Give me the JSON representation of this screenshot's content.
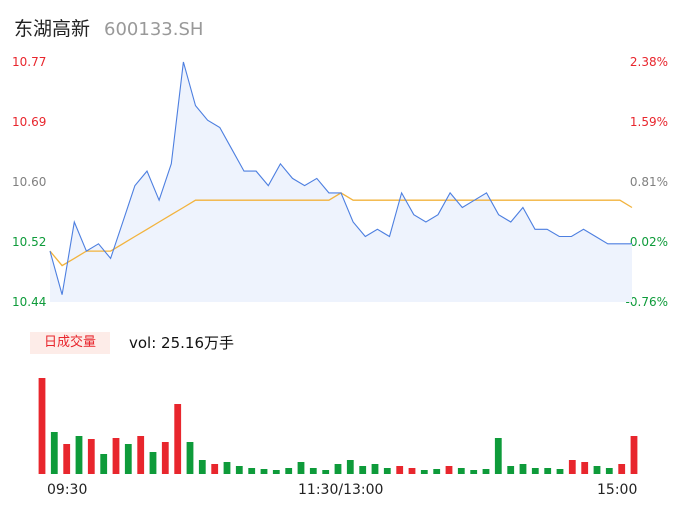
{
  "header": {
    "name": "东湖高新",
    "code": "600133.SH"
  },
  "price_axis": {
    "left_ticks": [
      "10.77",
      "10.69",
      "10.60",
      "10.52",
      "10.44"
    ],
    "right_ticks": [
      "2.38%",
      "1.59%",
      "0.81%",
      "0.02%",
      "-0.76%"
    ]
  },
  "volume_panel": {
    "tab_label": "日成交量",
    "readout": "vol: 25.16万手"
  },
  "time_axis": {
    "ticks": [
      "09:30",
      "11:30/13:00",
      "15:00"
    ]
  },
  "colors": {
    "price_line": "#4d7fe0",
    "avg_line": "#f2b33d",
    "up": "#e8262d",
    "down": "#0e9b3a",
    "fill": "#eef3fd"
  },
  "chart_data": [
    {
      "type": "line",
      "title": "",
      "ylim": [
        10.44,
        10.77
      ],
      "xlabel": "",
      "ylabel": "",
      "x": [
        "09:30",
        "09:35",
        "09:40",
        "09:45",
        "09:50",
        "09:55",
        "10:00",
        "10:05",
        "10:10",
        "10:15",
        "10:20",
        "10:25",
        "10:30",
        "10:35",
        "10:40",
        "10:45",
        "10:50",
        "10:55",
        "11:00",
        "11:05",
        "11:10",
        "11:15",
        "11:20",
        "11:25",
        "11:30",
        "13:05",
        "13:10",
        "13:15",
        "13:20",
        "13:25",
        "13:30",
        "13:35",
        "13:40",
        "13:45",
        "13:50",
        "13:55",
        "14:00",
        "14:05",
        "14:10",
        "14:15",
        "14:20",
        "14:25",
        "14:30",
        "14:35",
        "14:40",
        "14:45",
        "14:50",
        "14:55",
        "15:00"
      ],
      "series": [
        {
          "values": [
            10.51,
            10.45,
            10.55,
            10.51,
            10.52,
            10.5,
            10.55,
            10.6,
            10.62,
            10.58,
            10.63,
            10.77,
            10.71,
            10.69,
            10.68,
            10.65,
            10.62,
            10.62,
            10.6,
            10.63,
            10.61,
            10.6,
            10.61,
            10.59,
            10.59,
            10.55,
            10.53,
            10.54,
            10.53,
            10.59,
            10.56,
            10.55,
            10.56,
            10.59,
            10.57,
            10.58,
            10.59,
            10.56,
            10.55,
            10.57,
            10.54,
            10.54,
            10.53,
            10.53,
            10.54,
            10.53,
            10.52,
            10.52,
            10.52
          ]
        },
        {
          "values": [
            10.51,
            10.49,
            10.5,
            10.51,
            10.51,
            10.51,
            10.52,
            10.53,
            10.54,
            10.55,
            10.56,
            10.57,
            10.58,
            10.58,
            10.58,
            10.58,
            10.58,
            10.58,
            10.58,
            10.58,
            10.58,
            10.58,
            10.58,
            10.58,
            10.59,
            10.58,
            10.58,
            10.58,
            10.58,
            10.58,
            10.58,
            10.58,
            10.58,
            10.58,
            10.58,
            10.58,
            10.58,
            10.58,
            10.58,
            10.58,
            10.58,
            10.58,
            10.58,
            10.58,
            10.58,
            10.58,
            10.58,
            10.58,
            10.57
          ]
        }
      ]
    },
    {
      "type": "bar",
      "title": "",
      "xlabel": "",
      "ylabel": "",
      "categories": [
        "09:30",
        "09:35",
        "09:40",
        "09:45",
        "09:50",
        "09:55",
        "10:00",
        "10:05",
        "10:10",
        "10:15",
        "10:20",
        "10:25",
        "10:30",
        "10:35",
        "10:40",
        "10:45",
        "10:50",
        "10:55",
        "11:00",
        "11:05",
        "11:10",
        "11:15",
        "11:20",
        "11:25",
        "11:30",
        "13:05",
        "13:10",
        "13:15",
        "13:20",
        "13:25",
        "13:30",
        "13:35",
        "13:40",
        "13:45",
        "13:50",
        "13:55",
        "14:00",
        "14:05",
        "14:10",
        "14:15",
        "14:20",
        "14:25",
        "14:30",
        "14:35",
        "14:40",
        "14:45",
        "14:50",
        "14:55",
        "15:00"
      ],
      "values": [
        96,
        42,
        30,
        38,
        35,
        20,
        36,
        30,
        38,
        22,
        32,
        70,
        32,
        14,
        10,
        12,
        8,
        6,
        5,
        4,
        6,
        12,
        6,
        4,
        10,
        14,
        8,
        10,
        6,
        8,
        6,
        4,
        5,
        8,
        6,
        4,
        5,
        36,
        8,
        10,
        6,
        6,
        5,
        14,
        12,
        8,
        6,
        10,
        38
      ],
      "directions": [
        "up",
        "down",
        "up",
        "down",
        "up",
        "down",
        "up",
        "down",
        "up",
        "down",
        "up",
        "up",
        "down",
        "down",
        "up",
        "down",
        "down",
        "down",
        "down",
        "down",
        "down",
        "down",
        "down",
        "down",
        "down",
        "down",
        "down",
        "down",
        "down",
        "up",
        "up",
        "down",
        "down",
        "up",
        "down",
        "down",
        "down",
        "down",
        "down",
        "down",
        "down",
        "down",
        "down",
        "up",
        "up",
        "down",
        "down",
        "up",
        "up"
      ]
    }
  ]
}
